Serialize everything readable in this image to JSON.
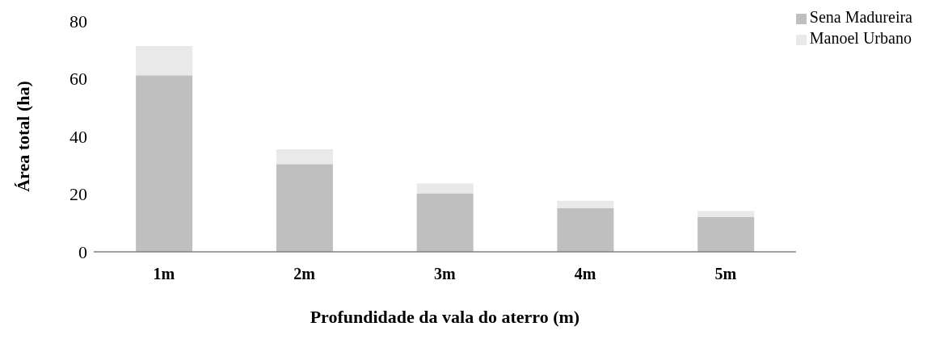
{
  "chart_data": {
    "type": "bar",
    "stacked": true,
    "xlabel": "Profundidade da vala do aterro (m)",
    "ylabel": "Área total (ha)",
    "categories": [
      "1m",
      "2m",
      "3m",
      "4m",
      "5m"
    ],
    "series": [
      {
        "name": "Sena Madureira",
        "color": "#bfbfbf",
        "values": [
          61.2,
          30.4,
          20.3,
          15.1,
          12.1
        ]
      },
      {
        "name": "Manoel Urbano",
        "color": "#e9e9e9",
        "values": [
          10.1,
          5.1,
          3.4,
          2.6,
          2.0
        ]
      }
    ],
    "ylim": [
      0,
      80
    ],
    "yticks": [
      0,
      20,
      40,
      60,
      80
    ],
    "grid": false,
    "legend": "top right"
  }
}
